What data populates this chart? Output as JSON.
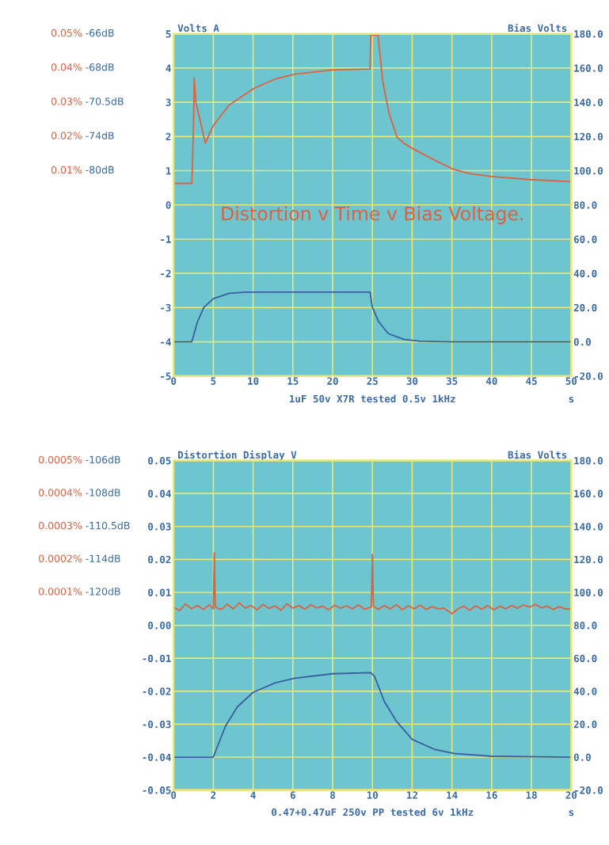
{
  "chart_data": [
    {
      "type": "line",
      "title": "Distortion v Time v Bias Voltage.",
      "xlabel": "s",
      "ylabel": "Volts A",
      "y2label": "Bias Volts",
      "annotations": [
        "1uF 50v X7R tested 0.5v 1kHz",
        "0.05%",
        "-66dB",
        "0.04%",
        "-68dB",
        "0.03%",
        "-70.5dB",
        "0.02%",
        "-74dB",
        "0.01%",
        "-80dB"
      ],
      "xlim": [
        0,
        50
      ],
      "xticks": [
        0,
        5,
        10,
        15,
        20,
        25,
        30,
        35,
        40,
        45,
        50
      ],
      "ylim": [
        -5,
        5
      ],
      "yticks": [
        -5,
        -4,
        -3,
        -2,
        -1,
        0,
        1,
        2,
        3,
        4,
        5
      ],
      "y2lim": [
        -20,
        180
      ],
      "y2ticks": [
        {
          "value": -20,
          "label": "-20.0"
        },
        {
          "value": 0,
          "label": "0.0"
        },
        {
          "value": 20,
          "label": "20.0"
        },
        {
          "value": 40,
          "label": "40.0"
        },
        {
          "value": 60,
          "label": "60.0"
        },
        {
          "value": 80,
          "label": "80.0"
        },
        {
          "value": 100,
          "label": "100.0"
        },
        {
          "value": 120,
          "label": "120.0"
        },
        {
          "value": 140,
          "label": "140.0"
        },
        {
          "value": 160,
          "label": "160.0"
        },
        {
          "value": 180,
          "label": "180.0"
        }
      ],
      "grid": true,
      "series": [
        {
          "color": "#e0603f",
          "axis": "y",
          "x": [
            0,
            2.3,
            2.5,
            2.6,
            2.8,
            4.0,
            5.0,
            7.0,
            10.2,
            12.9,
            15.3,
            20.1,
            24.7,
            24.8,
            25.7,
            26.3,
            27.1,
            28.1,
            28.9,
            30.1,
            32.9,
            35.3,
            37.3,
            40.0,
            44.8,
            50
          ],
          "values": [
            0.63,
            0.63,
            2.27,
            3.71,
            3.0,
            1.81,
            2.32,
            2.92,
            3.42,
            3.69,
            3.82,
            3.95,
            3.97,
            4.97,
            4.97,
            3.61,
            2.67,
            1.98,
            1.81,
            1.64,
            1.3,
            1.03,
            0.91,
            0.83,
            0.74,
            0.68
          ]
        },
        {
          "color": "#3a5fa0",
          "axis": "y2",
          "x": [
            0,
            2.3,
            3.0,
            3.8,
            5.0,
            7.0,
            9.0,
            15,
            20,
            24.7,
            25.0,
            25.8,
            27.0,
            29.0,
            31.0,
            35,
            50
          ],
          "values": [
            0,
            0,
            11.6,
            20.1,
            25.2,
            28.3,
            29,
            29,
            29,
            29,
            20.1,
            11.6,
            4.8,
            1.4,
            0.3,
            0,
            0
          ]
        }
      ]
    },
    {
      "type": "line",
      "xlabel": "s",
      "ylabel": "Distortion Display V",
      "y2label": "Bias Volts",
      "annotations": [
        "0.47+0.47uF 250v PP tested 6v 1kHz",
        "0.0005%",
        "-106dB",
        "0.0004%",
        "-108dB",
        "0.0003%",
        "-110.5dB",
        "0.0002%",
        "-114dB",
        "0.0001%",
        "-120dB"
      ],
      "xlim": [
        0,
        20
      ],
      "xticks": [
        0,
        2,
        4,
        6,
        8,
        10,
        12,
        14,
        16,
        18,
        20
      ],
      "ylim": [
        -0.05,
        0.05
      ],
      "yticks": [
        {
          "value": -0.05,
          "label": "-0.05"
        },
        {
          "value": -0.04,
          "label": "-0.04"
        },
        {
          "value": -0.03,
          "label": "-0.03"
        },
        {
          "value": -0.02,
          "label": "-0.02"
        },
        {
          "value": -0.01,
          "label": "-0.01"
        },
        {
          "value": 0,
          "label": "0.00"
        },
        {
          "value": 0.01,
          "label": "0.01"
        },
        {
          "value": 0.02,
          "label": "0.02"
        },
        {
          "value": 0.03,
          "label": "0.03"
        },
        {
          "value": 0.04,
          "label": "0.04"
        },
        {
          "value": 0.05,
          "label": "0.05"
        }
      ],
      "y2lim": [
        -20,
        180
      ],
      "y2ticks": [
        {
          "value": -20,
          "label": "-20.0"
        },
        {
          "value": 0,
          "label": "0.0"
        },
        {
          "value": 20,
          "label": "20.0"
        },
        {
          "value": 40,
          "label": "40.0"
        },
        {
          "value": 60,
          "label": "60.0"
        },
        {
          "value": 80,
          "label": "80.0"
        },
        {
          "value": 100,
          "label": "100.0"
        },
        {
          "value": 120,
          "label": "120.0"
        },
        {
          "value": 140,
          "label": "140.0"
        },
        {
          "value": 160,
          "label": "160.0"
        },
        {
          "value": 180,
          "label": "180.0"
        }
      ],
      "grid": true,
      "series": [
        {
          "color": "#e0603f",
          "axis": "y",
          "x": [
            0,
            0.3,
            0.6,
            0.9,
            1.2,
            1.5,
            1.8,
            2.0,
            2.05,
            2.1,
            2.4,
            2.7,
            3.0,
            3.3,
            3.6,
            3.9,
            4.2,
            4.5,
            4.8,
            5.1,
            5.4,
            5.7,
            6.0,
            6.3,
            6.6,
            6.9,
            7.2,
            7.5,
            7.8,
            8.1,
            8.4,
            8.7,
            9.0,
            9.3,
            9.6,
            9.95,
            10.0,
            10.05,
            10.3,
            10.6,
            10.9,
            11.2,
            11.5,
            11.8,
            12.1,
            12.4,
            12.7,
            13.0,
            13.3,
            13.6,
            14.0,
            14.3,
            14.6,
            14.9,
            15.2,
            15.5,
            15.8,
            16.1,
            16.4,
            16.7,
            17.0,
            17.3,
            17.6,
            17.9,
            18.2,
            18.5,
            18.8,
            19.1,
            19.4,
            19.7,
            20
          ],
          "values": [
            0.0055,
            0.0045,
            0.0065,
            0.005,
            0.006,
            0.0048,
            0.0062,
            0.005,
            0.022,
            0.0055,
            0.0048,
            0.0064,
            0.005,
            0.0068,
            0.0052,
            0.006,
            0.0047,
            0.0063,
            0.0051,
            0.0059,
            0.0046,
            0.0065,
            0.0052,
            0.006,
            0.0049,
            0.0062,
            0.0053,
            0.0058,
            0.0047,
            0.0061,
            0.0052,
            0.0059,
            0.005,
            0.0062,
            0.0049,
            0.0055,
            0.0215,
            0.0058,
            0.0048,
            0.006,
            0.005,
            0.0063,
            0.0047,
            0.0059,
            0.005,
            0.0061,
            0.0048,
            0.0057,
            0.005,
            0.0052,
            0.0035,
            0.005,
            0.0058,
            0.0046,
            0.0059,
            0.0049,
            0.006,
            0.0047,
            0.0058,
            0.005,
            0.006,
            0.0052,
            0.0062,
            0.0055,
            0.0064,
            0.0053,
            0.0058,
            0.0048,
            0.0057,
            0.0049,
            0.005
          ]
        },
        {
          "color": "#3a5fa0",
          "axis": "y2",
          "x": [
            0,
            2.0,
            2.6,
            3.2,
            4.0,
            5.1,
            6.1,
            8.0,
            9.9,
            10.1,
            10.6,
            11.2,
            12.0,
            13.1,
            14.1,
            16.0,
            20
          ],
          "values": [
            0,
            0,
            18.5,
            30.4,
            39.3,
            45,
            47.9,
            50.6,
            51.3,
            49.2,
            33.8,
            21.9,
            10.8,
            4.8,
            2.2,
            0.5,
            0
          ]
        }
      ]
    }
  ]
}
